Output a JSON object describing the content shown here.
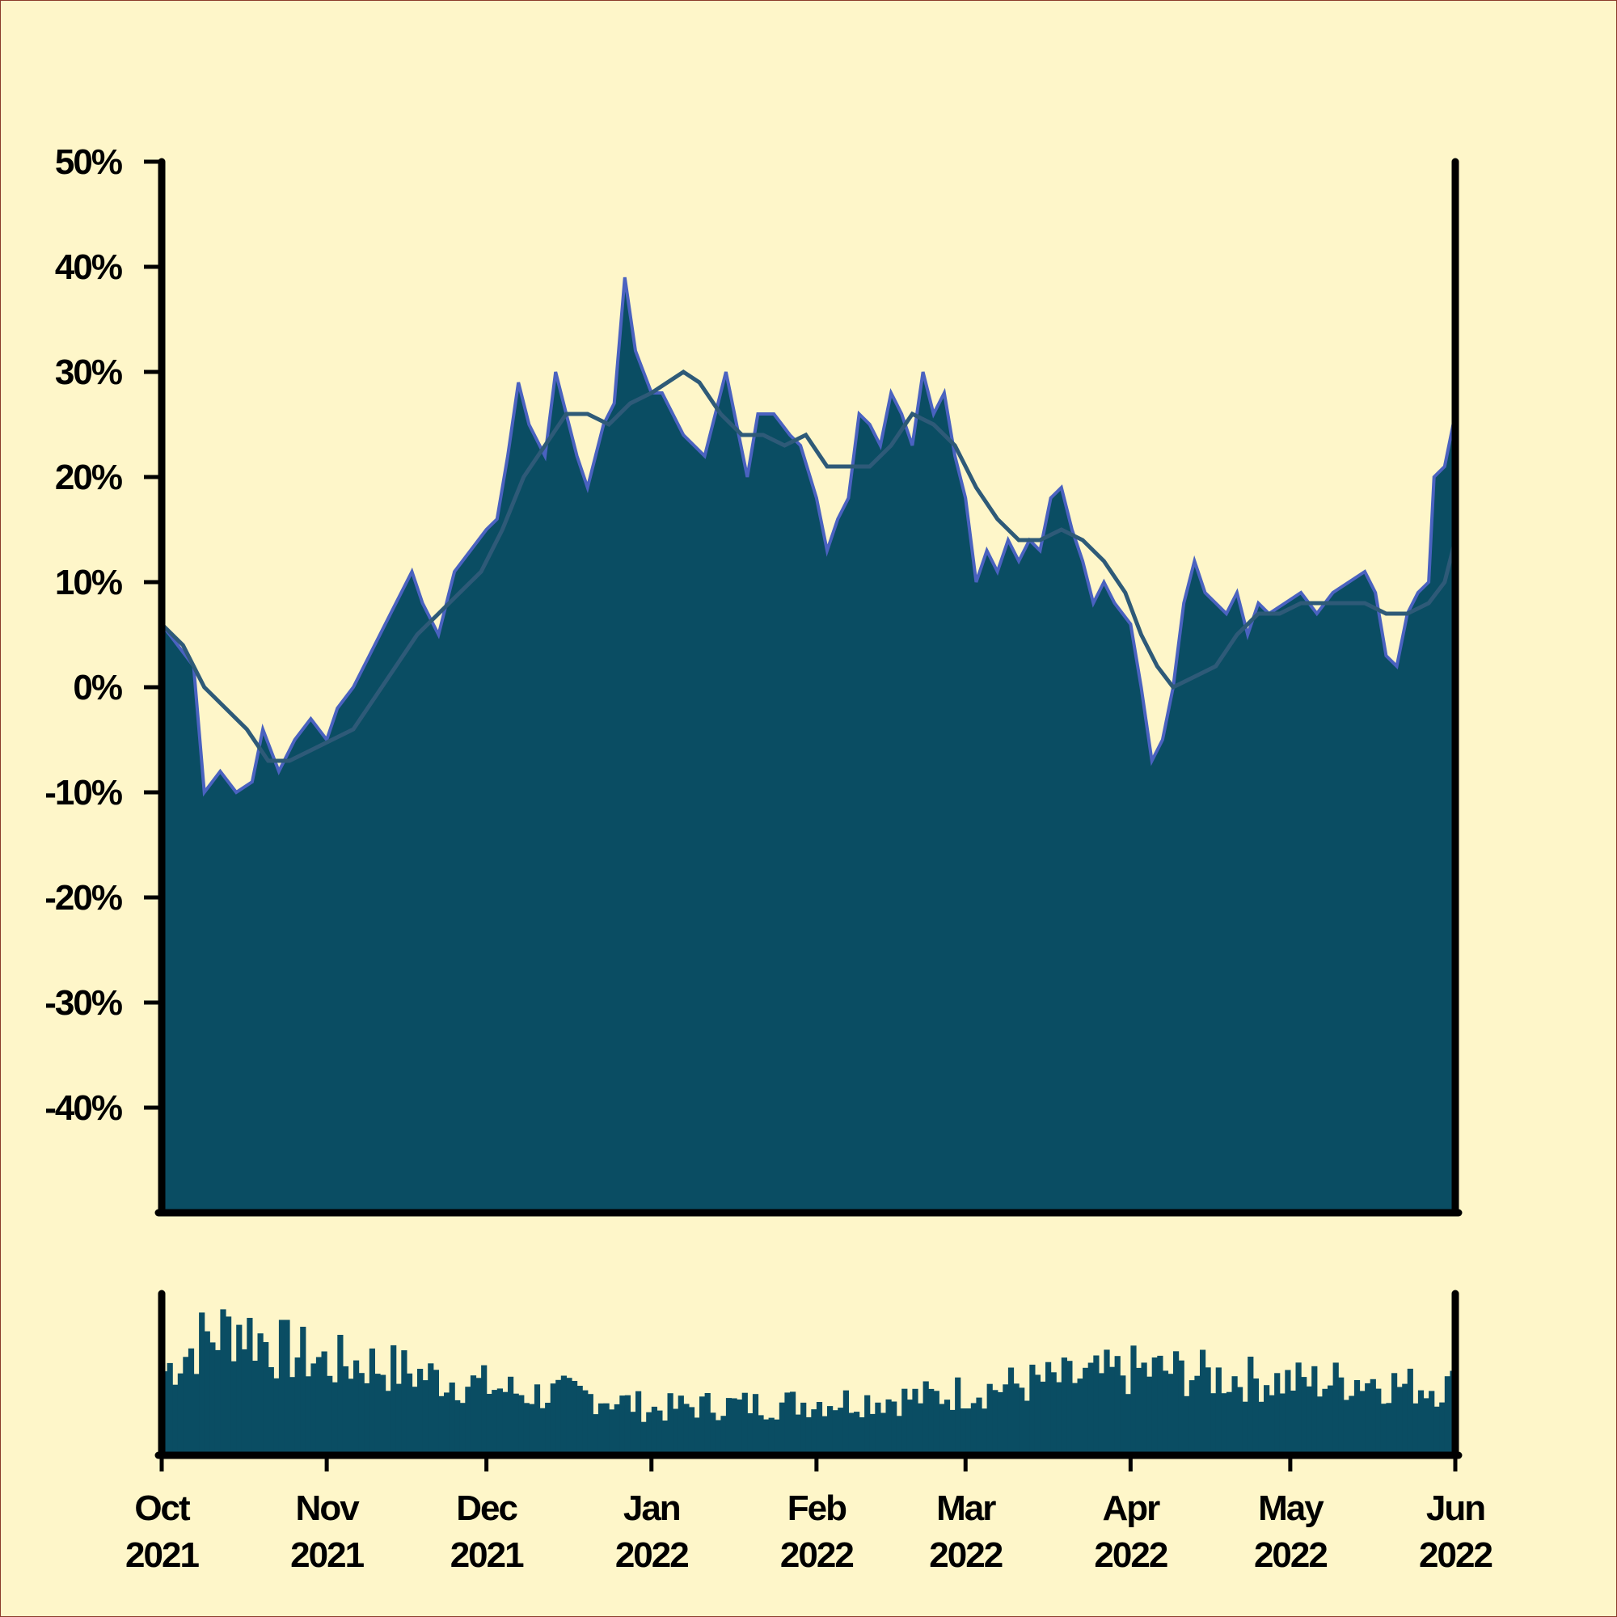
{
  "colors": {
    "background": "#fef6c9",
    "area_fill": "#0a4d63",
    "area_edge": "#4a62c0",
    "moving_average": "#2e5a78",
    "volume_bars": "#0a4d63",
    "axis": "#000000"
  },
  "chart_data": {
    "type": "area",
    "title": "",
    "xlabel": "",
    "ylabel": "",
    "x_range": [
      "2021-10-01",
      "2022-06-01"
    ],
    "ylim": [
      -50,
      50
    ],
    "y_ticks": [
      50,
      40,
      30,
      20,
      10,
      0,
      -10,
      -20,
      -30,
      -40
    ],
    "y_tick_labels": [
      "50%",
      "40%",
      "30%",
      "20%",
      "10%",
      "0%",
      "-10%",
      "-20%",
      "-30%",
      "-40%"
    ],
    "x_ticks": [
      {
        "date": "2021-10-01",
        "month": "Oct",
        "year": "2021"
      },
      {
        "date": "2021-11-01",
        "month": "Nov",
        "year": "2021"
      },
      {
        "date": "2021-12-01",
        "month": "Dec",
        "year": "2021"
      },
      {
        "date": "2022-01-01",
        "month": "Jan",
        "year": "2022"
      },
      {
        "date": "2022-02-01",
        "month": "Feb",
        "year": "2022"
      },
      {
        "date": "2022-03-01",
        "month": "Mar",
        "year": "2022"
      },
      {
        "date": "2022-04-01",
        "month": "Apr",
        "year": "2022"
      },
      {
        "date": "2022-05-01",
        "month": "May",
        "year": "2022"
      },
      {
        "date": "2022-06-01",
        "month": "Jun",
        "year": "2022"
      }
    ],
    "grid": false,
    "series": [
      {
        "kind": "area",
        "points": [
          [
            "2021-10-01",
            6
          ],
          [
            "2021-10-04",
            4
          ],
          [
            "2021-10-07",
            2
          ],
          [
            "2021-10-09",
            -10
          ],
          [
            "2021-10-12",
            -8
          ],
          [
            "2021-10-15",
            -10
          ],
          [
            "2021-10-18",
            -9
          ],
          [
            "2021-10-20",
            -4
          ],
          [
            "2021-10-23",
            -8
          ],
          [
            "2021-10-26",
            -5
          ],
          [
            "2021-10-29",
            -3
          ],
          [
            "2021-11-01",
            -5
          ],
          [
            "2021-11-03",
            -2
          ],
          [
            "2021-11-06",
            0
          ],
          [
            "2021-11-09",
            3
          ],
          [
            "2021-11-12",
            6
          ],
          [
            "2021-11-15",
            9
          ],
          [
            "2021-11-17",
            11
          ],
          [
            "2021-11-19",
            8
          ],
          [
            "2021-11-22",
            5
          ],
          [
            "2021-11-25",
            11
          ],
          [
            "2021-11-28",
            13
          ],
          [
            "2021-12-01",
            15
          ],
          [
            "2021-12-03",
            16
          ],
          [
            "2021-12-05",
            22
          ],
          [
            "2021-12-07",
            29
          ],
          [
            "2021-12-09",
            25
          ],
          [
            "2021-12-12",
            22
          ],
          [
            "2021-12-14",
            30
          ],
          [
            "2021-12-16",
            26
          ],
          [
            "2021-12-18",
            22
          ],
          [
            "2021-12-20",
            19
          ],
          [
            "2021-12-23",
            25
          ],
          [
            "2021-12-25",
            27
          ],
          [
            "2021-12-27",
            39
          ],
          [
            "2021-12-29",
            32
          ],
          [
            "2022-01-01",
            28
          ],
          [
            "2022-01-03",
            28
          ],
          [
            "2022-01-05",
            26
          ],
          [
            "2022-01-07",
            24
          ],
          [
            "2022-01-09",
            23
          ],
          [
            "2022-01-11",
            22
          ],
          [
            "2022-01-13",
            26
          ],
          [
            "2022-01-15",
            30
          ],
          [
            "2022-01-17",
            25
          ],
          [
            "2022-01-19",
            20
          ],
          [
            "2022-01-21",
            26
          ],
          [
            "2022-01-24",
            26
          ],
          [
            "2022-01-27",
            24
          ],
          [
            "2022-01-29",
            23
          ],
          [
            "2022-02-01",
            18
          ],
          [
            "2022-02-03",
            13
          ],
          [
            "2022-02-05",
            16
          ],
          [
            "2022-02-07",
            18
          ],
          [
            "2022-02-09",
            26
          ],
          [
            "2022-02-11",
            25
          ],
          [
            "2022-02-13",
            23
          ],
          [
            "2022-02-15",
            28
          ],
          [
            "2022-02-17",
            26
          ],
          [
            "2022-02-19",
            23
          ],
          [
            "2022-02-21",
            30
          ],
          [
            "2022-02-23",
            26
          ],
          [
            "2022-02-25",
            28
          ],
          [
            "2022-02-27",
            22
          ],
          [
            "2022-03-01",
            18
          ],
          [
            "2022-03-03",
            10
          ],
          [
            "2022-03-05",
            13
          ],
          [
            "2022-03-07",
            11
          ],
          [
            "2022-03-09",
            14
          ],
          [
            "2022-03-11",
            12
          ],
          [
            "2022-03-13",
            14
          ],
          [
            "2022-03-15",
            13
          ],
          [
            "2022-03-17",
            18
          ],
          [
            "2022-03-19",
            19
          ],
          [
            "2022-03-21",
            15
          ],
          [
            "2022-03-23",
            12
          ],
          [
            "2022-03-25",
            8
          ],
          [
            "2022-03-27",
            10
          ],
          [
            "2022-03-29",
            8
          ],
          [
            "2022-04-01",
            6
          ],
          [
            "2022-04-03",
            0
          ],
          [
            "2022-04-05",
            -7
          ],
          [
            "2022-04-07",
            -5
          ],
          [
            "2022-04-09",
            0
          ],
          [
            "2022-04-11",
            8
          ],
          [
            "2022-04-13",
            12
          ],
          [
            "2022-04-15",
            9
          ],
          [
            "2022-04-17",
            8
          ],
          [
            "2022-04-19",
            7
          ],
          [
            "2022-04-21",
            9
          ],
          [
            "2022-04-23",
            5
          ],
          [
            "2022-04-25",
            8
          ],
          [
            "2022-04-27",
            7
          ],
          [
            "2022-04-30",
            8
          ],
          [
            "2022-05-03",
            9
          ],
          [
            "2022-05-06",
            7
          ],
          [
            "2022-05-09",
            9
          ],
          [
            "2022-05-12",
            10
          ],
          [
            "2022-05-15",
            11
          ],
          [
            "2022-05-17",
            9
          ],
          [
            "2022-05-19",
            3
          ],
          [
            "2022-05-21",
            2
          ],
          [
            "2022-05-23",
            7
          ],
          [
            "2022-05-25",
            9
          ],
          [
            "2022-05-27",
            10
          ],
          [
            "2022-05-28",
            20
          ],
          [
            "2022-05-30",
            21
          ],
          [
            "2022-06-01",
            26
          ]
        ]
      },
      {
        "kind": "line",
        "points": [
          [
            "2021-10-01",
            6
          ],
          [
            "2021-10-05",
            4
          ],
          [
            "2021-10-09",
            0
          ],
          [
            "2021-10-13",
            -2
          ],
          [
            "2021-10-17",
            -4
          ],
          [
            "2021-10-21",
            -7
          ],
          [
            "2021-10-25",
            -7
          ],
          [
            "2021-10-29",
            -6
          ],
          [
            "2021-11-02",
            -5
          ],
          [
            "2021-11-06",
            -4
          ],
          [
            "2021-11-10",
            -1
          ],
          [
            "2021-11-14",
            2
          ],
          [
            "2021-11-18",
            5
          ],
          [
            "2021-11-22",
            7
          ],
          [
            "2021-11-26",
            9
          ],
          [
            "2021-11-30",
            11
          ],
          [
            "2021-12-04",
            15
          ],
          [
            "2021-12-08",
            20
          ],
          [
            "2021-12-12",
            23
          ],
          [
            "2021-12-16",
            26
          ],
          [
            "2021-12-20",
            26
          ],
          [
            "2021-12-24",
            25
          ],
          [
            "2021-12-28",
            27
          ],
          [
            "2022-01-01",
            28
          ],
          [
            "2022-01-04",
            29
          ],
          [
            "2022-01-07",
            30
          ],
          [
            "2022-01-10",
            29
          ],
          [
            "2022-01-14",
            26
          ],
          [
            "2022-01-18",
            24
          ],
          [
            "2022-01-22",
            24
          ],
          [
            "2022-01-26",
            23
          ],
          [
            "2022-01-30",
            24
          ],
          [
            "2022-02-03",
            21
          ],
          [
            "2022-02-07",
            21
          ],
          [
            "2022-02-11",
            21
          ],
          [
            "2022-02-15",
            23
          ],
          [
            "2022-02-19",
            26
          ],
          [
            "2022-02-23",
            25
          ],
          [
            "2022-02-27",
            23
          ],
          [
            "2022-03-03",
            19
          ],
          [
            "2022-03-07",
            16
          ],
          [
            "2022-03-11",
            14
          ],
          [
            "2022-03-15",
            14
          ],
          [
            "2022-03-19",
            15
          ],
          [
            "2022-03-23",
            14
          ],
          [
            "2022-03-27",
            12
          ],
          [
            "2022-03-31",
            9
          ],
          [
            "2022-04-03",
            5
          ],
          [
            "2022-04-06",
            2
          ],
          [
            "2022-04-09",
            0
          ],
          [
            "2022-04-13",
            1
          ],
          [
            "2022-04-17",
            2
          ],
          [
            "2022-04-21",
            5
          ],
          [
            "2022-04-25",
            7
          ],
          [
            "2022-04-29",
            7
          ],
          [
            "2022-05-03",
            8
          ],
          [
            "2022-05-07",
            8
          ],
          [
            "2022-05-11",
            8
          ],
          [
            "2022-05-15",
            8
          ],
          [
            "2022-05-19",
            7
          ],
          [
            "2022-05-23",
            7
          ],
          [
            "2022-05-27",
            8
          ],
          [
            "2022-05-30",
            10
          ],
          [
            "2022-06-01",
            14
          ]
        ]
      }
    ],
    "volume": {
      "kind": "bar",
      "y_axis_labeled": false,
      "points": [
        [
          "2021-10-01",
          0.55
        ],
        [
          "2021-10-08",
          0.75
        ],
        [
          "2021-10-15",
          0.85
        ],
        [
          "2021-10-22",
          0.7
        ],
        [
          "2021-11-01",
          0.6
        ],
        [
          "2021-11-08",
          0.6
        ],
        [
          "2021-11-15",
          0.55
        ],
        [
          "2021-11-22",
          0.5
        ],
        [
          "2021-12-01",
          0.45
        ],
        [
          "2021-12-08",
          0.4
        ],
        [
          "2021-12-15",
          0.4
        ],
        [
          "2021-12-22",
          0.38
        ],
        [
          "2022-01-01",
          0.3
        ],
        [
          "2022-01-08",
          0.32
        ],
        [
          "2022-01-15",
          0.33
        ],
        [
          "2022-01-22",
          0.33
        ],
        [
          "2022-02-01",
          0.35
        ],
        [
          "2022-02-08",
          0.36
        ],
        [
          "2022-02-15",
          0.37
        ],
        [
          "2022-02-22",
          0.38
        ],
        [
          "2022-03-01",
          0.42
        ],
        [
          "2022-03-08",
          0.45
        ],
        [
          "2022-03-15",
          0.48
        ],
        [
          "2022-03-22",
          0.5
        ],
        [
          "2022-04-01",
          0.55
        ],
        [
          "2022-04-08",
          0.55
        ],
        [
          "2022-04-15",
          0.52
        ],
        [
          "2022-04-22",
          0.5
        ],
        [
          "2022-05-01",
          0.48
        ],
        [
          "2022-05-08",
          0.48
        ],
        [
          "2022-05-15",
          0.5
        ],
        [
          "2022-05-22",
          0.45
        ]
      ]
    }
  }
}
